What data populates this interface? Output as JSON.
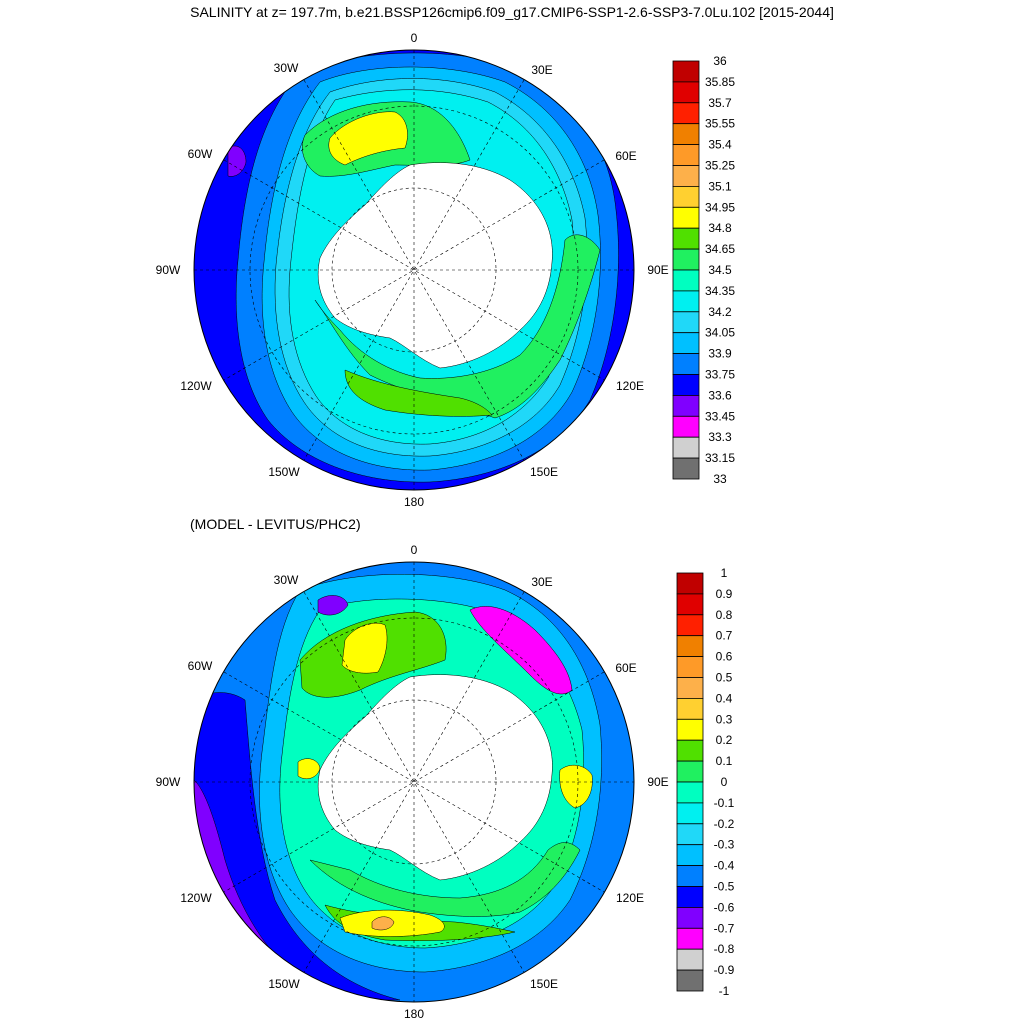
{
  "title": "SALINITY at z= 197.7m, b.e21.BSSP126cmip6.f09_g17.CMIP6-SSP1-2.6-SSP3-7.0Lu.102 [2015-2044]",
  "subtitle": "(MODEL - LEVITUS/PHC2)",
  "longitude_labels": {
    "deg0": "0",
    "e30": "30E",
    "e60": "60E",
    "e90": "90E",
    "e120": "120E",
    "e150": "150E",
    "deg180": "180",
    "w150": "150W",
    "w120": "120W",
    "w90": "90W",
    "w60": "60W",
    "w30": "30W"
  },
  "top_colorbar": {
    "labels": [
      "36",
      "35.85",
      "35.7",
      "35.55",
      "35.4",
      "35.25",
      "35.1",
      "34.95",
      "34.8",
      "34.65",
      "34.5",
      "34.35",
      "34.2",
      "34.05",
      "33.9",
      "33.75",
      "33.6",
      "33.45",
      "33.3",
      "33.15",
      "33"
    ],
    "colors": [
      "#c00000",
      "#e00000",
      "#ff2000",
      "#f08000",
      "#fe9a28",
      "#fdb04a",
      "#ffd030",
      "#ffff00",
      "#50e000",
      "#20f060",
      "#00ffc0",
      "#00f0f0",
      "#20d8f8",
      "#00c0ff",
      "#0080ff",
      "#0000ff",
      "#8000ff",
      "#ff00ff",
      "#d0d0d0",
      "#707070"
    ]
  },
  "bottom_colorbar": {
    "labels": [
      "1",
      "0.9",
      "0.8",
      "0.7",
      "0.6",
      "0.5",
      "0.4",
      "0.3",
      "0.2",
      "0.1",
      "0",
      "-0.1",
      "-0.2",
      "-0.3",
      "-0.4",
      "-0.5",
      "-0.6",
      "-0.7",
      "-0.8",
      "-0.9",
      "-1"
    ],
    "colors": [
      "#c00000",
      "#e00000",
      "#ff2000",
      "#f08000",
      "#fe9a28",
      "#fdb04a",
      "#ffd030",
      "#ffff00",
      "#50e000",
      "#20f060",
      "#00ffc0",
      "#00f0f0",
      "#20d8f8",
      "#00c0ff",
      "#0080ff",
      "#0000ff",
      "#8000ff",
      "#ff00ff",
      "#d0d0d0",
      "#707070"
    ]
  },
  "palette": {
    "land": "#ffffff",
    "deep_blue": "#0000ff",
    "mid_blue": "#0080ff",
    "light_blue": "#00c0ff",
    "cyan": "#20d8f8",
    "aqua": "#00f0f0",
    "teal": "#00ffc0",
    "green": "#20f060",
    "lime": "#50e000",
    "yellow": "#ffff00",
    "gold": "#ffd030",
    "orange": "#fdb04a",
    "purple": "#8000ff",
    "magenta": "#ff00ff",
    "grey": "#d0d0d0"
  }
}
